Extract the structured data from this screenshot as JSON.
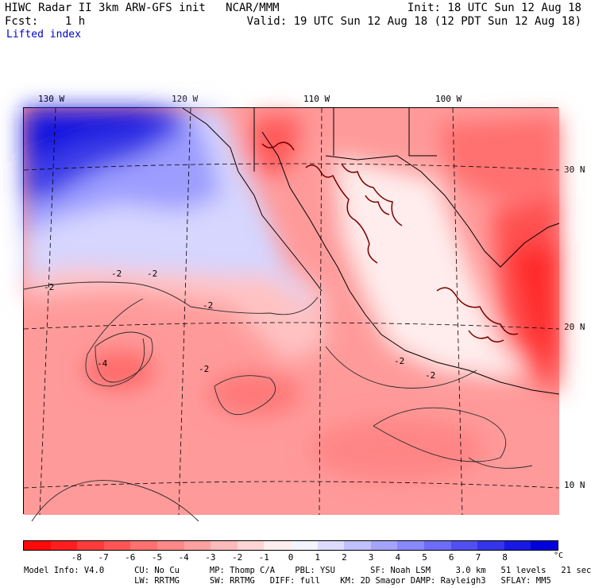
{
  "header": {
    "title": "HIWC Radar II 3km ARW-GFS init   NCAR/MMM",
    "init": "Init: 18 UTC Sun 12 Aug 18",
    "fcst": "Fcst:    1 h",
    "valid": "Valid: 19 UTC Sun 12 Aug 18 (12 PDT Sun 12 Aug 18)",
    "field": "Lifted index"
  },
  "map": {
    "longitude_labels": [
      "130 W",
      "120 W",
      "110 W",
      "100 W"
    ],
    "latitude_labels": [
      "30 N",
      "20 N",
      "10 N"
    ],
    "contour_labels": [
      "-2",
      "-2",
      "-2",
      "-2",
      "-2",
      "-4",
      "-2",
      "-2"
    ]
  },
  "colorbar": {
    "colors": [
      "#ff0a0a",
      "#ff1e1e",
      "#ff3c3c",
      "#ff5555",
      "#ff7070",
      "#ff8888",
      "#ffa0a0",
      "#ffbaba",
      "#ffd4d4",
      "#ffeeee",
      "#f4f4ff",
      "#dcdcff",
      "#c0c0ff",
      "#a4a4ff",
      "#8888ff",
      "#6c6cf6",
      "#5050f0",
      "#3434ea",
      "#1818e4",
      "#0000dc"
    ],
    "tick_labels": [
      "-8",
      "-7",
      "-6",
      "-5",
      "-4",
      "-3",
      "-2",
      "-1",
      "0",
      "1",
      "2",
      "3",
      "4",
      "5",
      "6",
      "7",
      "8"
    ],
    "unit": "°C"
  },
  "model_info": {
    "line1": "Model Info: V4.0      CU: No Cu      MP: Thomp C/A    PBL: YSU       SF: Noah LSM     3.0 km   51 levels   21 sec",
    "line2": "                      LW: RRTMG      SW: RRTMG   DIFF: full    KM: 2D Smagor DAMP: Rayleigh3   SFLAY: MM5"
  }
}
